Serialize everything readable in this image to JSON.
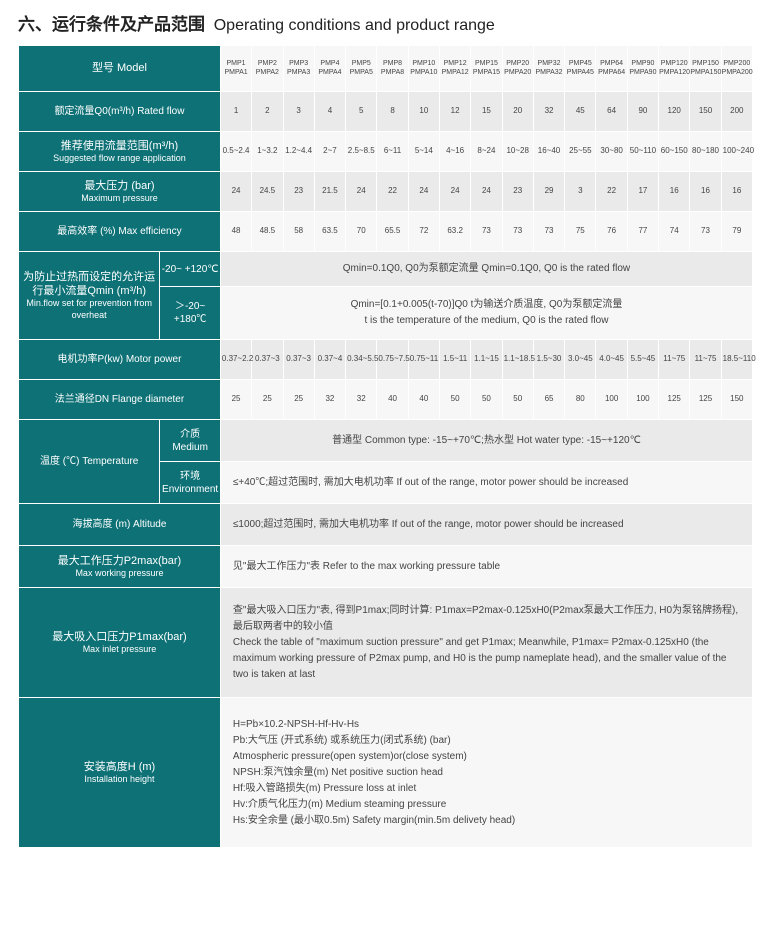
{
  "title_cn": "六、运行条件及产品范围",
  "title_en": "Operating conditions and product range",
  "colors": {
    "header_bg": "#0d7176",
    "header_text": "#ffffff",
    "row_odd_bg": "#eaeaea",
    "row_even_bg": "#f7f7f7",
    "border": "#ffffff",
    "text": "#444444"
  },
  "models_top": [
    "PMP1",
    "PMP2",
    "PMP3",
    "PMP4",
    "PMP5",
    "PMP8",
    "PMP10",
    "PMP12",
    "PMP15",
    "PMP20",
    "PMP32",
    "PMP45",
    "PMP64",
    "PMP90",
    "PMP120",
    "PMP150",
    "PMP200"
  ],
  "models_bottom": [
    "PMPA1",
    "PMPA2",
    "PMPA3",
    "PMPA4",
    "PMPA5",
    "PMPA8",
    "PMPA10",
    "PMPA12",
    "PMPA15",
    "PMPA20",
    "PMPA32",
    "PMPA45",
    "PMPA64",
    "PMPA90",
    "PMPA120",
    "PMPA150",
    "PMPA200"
  ],
  "rows": {
    "model_label": "型号 Model",
    "rated_flow": {
      "label": "额定流量Q0(m³/h) Rated flow",
      "values": [
        "1",
        "2",
        "3",
        "4",
        "5",
        "8",
        "10",
        "12",
        "15",
        "20",
        "32",
        "45",
        "64",
        "90",
        "120",
        "150",
        "200"
      ]
    },
    "flow_range": {
      "label_cn": "推荐使用流量范围(m³/h)",
      "label_en": "Suggested flow range application",
      "values": [
        "0.5~2.4",
        "1~3.2",
        "1.2~4.4",
        "2~7",
        "2.5~8.5",
        "6~11",
        "5~14",
        "4~16",
        "8~24",
        "10~28",
        "16~40",
        "25~55",
        "30~80",
        "50~110",
        "60~150",
        "80~180",
        "100~240"
      ]
    },
    "max_pressure": {
      "label_cn": "最大压力 (bar)",
      "label_en": "Maximum pressure",
      "values": [
        "24",
        "24.5",
        "23",
        "21.5",
        "24",
        "22",
        "24",
        "24",
        "24",
        "23",
        "29",
        "3",
        "22",
        "17",
        "16",
        "16",
        "16"
      ]
    },
    "max_eff": {
      "label": "最高效率 (%)  Max efficiency",
      "values": [
        "48",
        "48.5",
        "58",
        "63.5",
        "70",
        "65.5",
        "72",
        "63.2",
        "73",
        "73",
        "73",
        "75",
        "76",
        "77",
        "74",
        "73",
        "79"
      ]
    },
    "qmin": {
      "label_cn": "为防止过热而设定的允许运行最小流量Qmin (m³/h)",
      "label_en": "Min.flow set for prevention from overheat",
      "range1_label": "-20~ +120℃",
      "range1_text": "Qmin=0.1Q0, Q0为泵额定流量   Qmin=0.1Q0, Q0 is the rated flow",
      "range2_label": "＞-20~ +180℃",
      "range2_text_cn": "Qmin=[0.1+0.005(t-70)]Q0   t为输送介质温度, Q0为泵额定流量",
      "range2_text_en": "t is the temperature of the medium, Q0 is the rated flow"
    },
    "motor_power": {
      "label": "电机功率P(kw) Motor power",
      "values": [
        "0.37~2.2",
        "0.37~3",
        "0.37~3",
        "0.37~4",
        "0.34~5.5",
        "0.75~7.5",
        "0.75~11",
        "1.5~11",
        "1.1~15",
        "1.1~18.5",
        "1.5~30",
        "3.0~45",
        "4.0~45",
        "5.5~45",
        "11~75",
        "11~75",
        "18.5~110"
      ]
    },
    "flange": {
      "label": "法兰通径DN Flange diameter",
      "values": [
        "25",
        "25",
        "25",
        "32",
        "32",
        "40",
        "40",
        "50",
        "50",
        "50",
        "65",
        "80",
        "100",
        "100",
        "125",
        "125",
        "150"
      ]
    },
    "temperature": {
      "label": "温度 (℃) Temperature",
      "medium_label_cn": "介质",
      "medium_label_en": "Medium",
      "medium_text": "普通型 Common type: -15~+70℃;热水型 Hot water type: -15~+120℃",
      "env_label_cn": "环境",
      "env_label_en": "Environment",
      "env_text": "≤+40℃;超过范围时, 需加大电机功率 If out of the range, motor power should be increased"
    },
    "altitude": {
      "label": "海拔高度 (m) Altitude",
      "text": "≤1000;超过范围时, 需加大电机功率 If out of the range, motor power should be increased"
    },
    "p2max": {
      "label_cn": "最大工作压力P2max(bar)",
      "label_en": "Max working pressure",
      "text": "见\"最大工作压力\"表 Refer to the max working pressure table"
    },
    "p1max": {
      "label_cn": "最大吸入口压力P1max(bar)",
      "label_en": "Max inlet pressure",
      "text_cn": "查\"最大吸入口压力\"表, 得到P1max;同时计算: P1max=P2max-0.125xH0(P2max泵最大工作压力, H0为泵铭牌扬程), 最后取两者中的较小值",
      "text_en": "Check the table of \"maximum suction pressure\" and get P1max; Meanwhile, P1max= P2max-0.125xH0 (the maximum working pressure of P2max pump, and H0 is the pump nameplate head), and the smaller value of the two is taken at last"
    },
    "install_height": {
      "label_cn": "安装高度H (m)",
      "label_en": "Installation height",
      "lines": [
        "H=Pb×10.2-NPSH-Hf-Hv-Hs",
        "Pb:大气压 (开式系统) 或系统压力(闭式系统) (bar)",
        "Atmospheric pressure(open system)or(close system)",
        "NPSH:泵汽蚀余量(m) Net positive suction head",
        "Hf:吸入管路损失(m) Pressure loss at inlet",
        "Hv:介质气化压力(m) Medium steaming pressure",
        "Hs:安全余量 (最小取0.5m) Safety margin(min.5m delivety head)"
      ]
    }
  }
}
